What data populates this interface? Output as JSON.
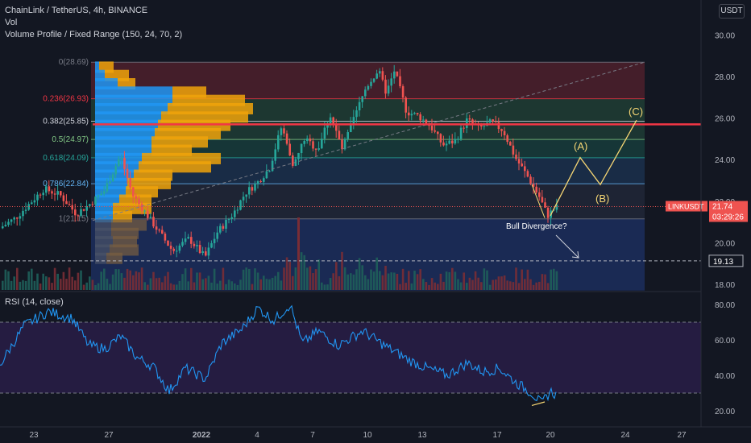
{
  "header": {
    "symbol_line": "ChainLink / TetherUS, 4h, BINANCE",
    "indicator_vol": "Vol",
    "indicator_vp": "Volume Profile / Fixed Range (150, 24, 70, 2)",
    "currency": "USDT"
  },
  "price_axis": {
    "labels": [
      {
        "text": "30.00",
        "value": 30
      },
      {
        "text": "28.00",
        "value": 28
      },
      {
        "text": "26.00",
        "value": 26
      },
      {
        "text": "24.00",
        "value": 24
      },
      {
        "text": "22.00",
        "value": 22
      },
      {
        "text": "20.00",
        "value": 20
      },
      {
        "text": "18.00",
        "value": 18
      }
    ],
    "last_price_symbol": "LINKUSDT",
    "last_price": "21.74",
    "countdown": "03:29:26",
    "level_marker": "19.13",
    "last_price_value": 21.74,
    "level_value": 19.13
  },
  "fib_levels": [
    {
      "label": "0(28.69)",
      "value": 28.69,
      "color": "#787b86"
    },
    {
      "label": "0.236(26.93)",
      "value": 26.93,
      "color": "#f23645"
    },
    {
      "label": "0.382(25.85)",
      "value": 25.85,
      "color": "#d1d4dc"
    },
    {
      "label": "0.5(24.97)",
      "value": 24.97,
      "color": "#81c784"
    },
    {
      "label": "0.618(24.09)",
      "value": 24.09,
      "color": "#26a69a"
    },
    {
      "label": "0.786(22.84)",
      "value": 22.84,
      "color": "#64b5f6"
    },
    {
      "label": "1(21.15)",
      "value": 21.15,
      "color": "#787b86"
    }
  ],
  "annotations": {
    "wave_a": "(A)",
    "wave_b": "(B)",
    "wave_c": "(C)",
    "divergence": "Bull Divergence?"
  },
  "rsi": {
    "title": "RSI (14, close)",
    "axis": [
      {
        "text": "80.00",
        "value": 80
      },
      {
        "text": "60.00",
        "value": 60
      },
      {
        "text": "40.00",
        "value": 40
      },
      {
        "text": "20.00",
        "value": 20
      }
    ],
    "upper_band": 70,
    "lower_band": 30
  },
  "time_axis": [
    {
      "text": "23",
      "bold": false
    },
    {
      "text": "27",
      "bold": false
    },
    {
      "text": "2022",
      "bold": true
    },
    {
      "text": "4",
      "bold": false
    },
    {
      "text": "7",
      "bold": false
    },
    {
      "text": "10",
      "bold": false
    },
    {
      "text": "13",
      "bold": false
    },
    {
      "text": "17",
      "bold": false
    },
    {
      "text": "20",
      "bold": false
    },
    {
      "text": "24",
      "bold": false
    },
    {
      "text": "27",
      "bold": false
    }
  ],
  "colors": {
    "up": "#26a69a",
    "down": "#ef5350",
    "background": "#131722",
    "resistance_line": "#f23645",
    "rsi_line": "#2196f3",
    "rsi_band_fill": "#2a1e4a",
    "wave_drawing": "#f7d774",
    "vp_up": "#2196f3",
    "vp_down": "#f0a30a"
  }
}
